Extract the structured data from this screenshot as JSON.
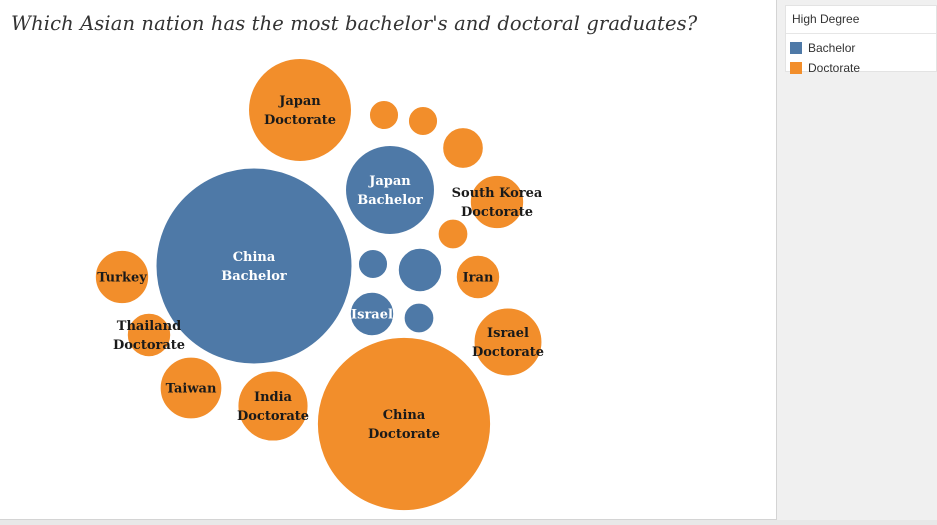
{
  "title": "Which Asian nation has the most bachelor's and doctoral graduates?",
  "legend": {
    "title": "High Degree",
    "items": [
      {
        "label": "Bachelor",
        "color": "#4e79a7"
      },
      {
        "label": "Doctorate",
        "color": "#f28e2b"
      }
    ]
  },
  "chart_data": {
    "type": "packed-bubble",
    "title": "Which Asian nation has the most bachelor's and doctoral graduates?",
    "legend_title": "High Degree",
    "legend_position": "top-right",
    "series": [
      {
        "name": "Bachelor",
        "color": "#4e79a7"
      },
      {
        "name": "Doctorate",
        "color": "#f28e2b"
      }
    ],
    "bubbles": [
      {
        "id": "china-bachelor",
        "series": "Bachelor",
        "lines": [
          "China",
          "Bachelor"
        ],
        "label_color": "#ffffff",
        "relative_size": 10000
      },
      {
        "id": "china-doctorate",
        "series": "Doctorate",
        "lines": [
          "China",
          "Doctorate"
        ],
        "label_color": "#1a1a1a",
        "relative_size": 7810
      },
      {
        "id": "japan-doctorate",
        "series": "Doctorate",
        "lines": [
          "Japan",
          "Doctorate"
        ],
        "label_color": "#1a1a1a",
        "relative_size": 2760
      },
      {
        "id": "japan-bachelor",
        "series": "Bachelor",
        "lines": [
          "Japan",
          "Bachelor"
        ],
        "label_color": "#ffffff",
        "relative_size": 2060
      },
      {
        "id": "israel-doctorate",
        "series": "Doctorate",
        "lines": [
          "Israel",
          "Doctorate"
        ],
        "label_color": "#1a1a1a",
        "relative_size": 1200
      },
      {
        "id": "india-doctorate",
        "series": "Doctorate",
        "lines": [
          "India",
          "Doctorate"
        ],
        "label_color": "#1a1a1a",
        "relative_size": 1280
      },
      {
        "id": "south-korea-doctorate",
        "series": "Doctorate",
        "lines": [
          "South Korea",
          "Doctorate"
        ],
        "label_color": "#1a1a1a",
        "relative_size": 740
      },
      {
        "id": "taiwan-doctorate",
        "series": "Doctorate",
        "lines": [
          "Taiwan"
        ],
        "label_color": "#1a1a1a",
        "relative_size": 990
      },
      {
        "id": "turkey-doctorate",
        "series": "Doctorate",
        "lines": [
          "Turkey"
        ],
        "label_color": "#1a1a1a",
        "relative_size": 740
      },
      {
        "id": "iran-doctorate",
        "series": "Doctorate",
        "lines": [
          "Iran"
        ],
        "label_color": "#1a1a1a",
        "relative_size": 490
      },
      {
        "id": "thailand-doctorate",
        "series": "Doctorate",
        "lines": [
          "Thailand",
          "Doctorate"
        ],
        "label_color": "#1a1a1a",
        "relative_size": 490
      },
      {
        "id": "israel-bachelor",
        "series": "Bachelor",
        "lines": [
          "Israel"
        ],
        "label_color": "#ffffff",
        "relative_size": 490
      },
      {
        "id": "doctorate-unlabeled-1",
        "series": "Doctorate",
        "lines": [],
        "relative_size": 430
      },
      {
        "id": "doctorate-unlabeled-2",
        "series": "Doctorate",
        "lines": [],
        "relative_size": 220
      },
      {
        "id": "doctorate-unlabeled-3",
        "series": "Doctorate",
        "lines": [],
        "relative_size": 220
      },
      {
        "id": "doctorate-unlabeled-4",
        "series": "Doctorate",
        "lines": [],
        "relative_size": 230
      },
      {
        "id": "bachelor-unlabeled-1",
        "series": "Bachelor",
        "lines": [],
        "relative_size": 490
      },
      {
        "id": "bachelor-unlabeled-2",
        "series": "Bachelor",
        "lines": [],
        "relative_size": 220
      },
      {
        "id": "bachelor-unlabeled-3",
        "series": "Bachelor",
        "lines": [],
        "relative_size": 230
      }
    ]
  }
}
